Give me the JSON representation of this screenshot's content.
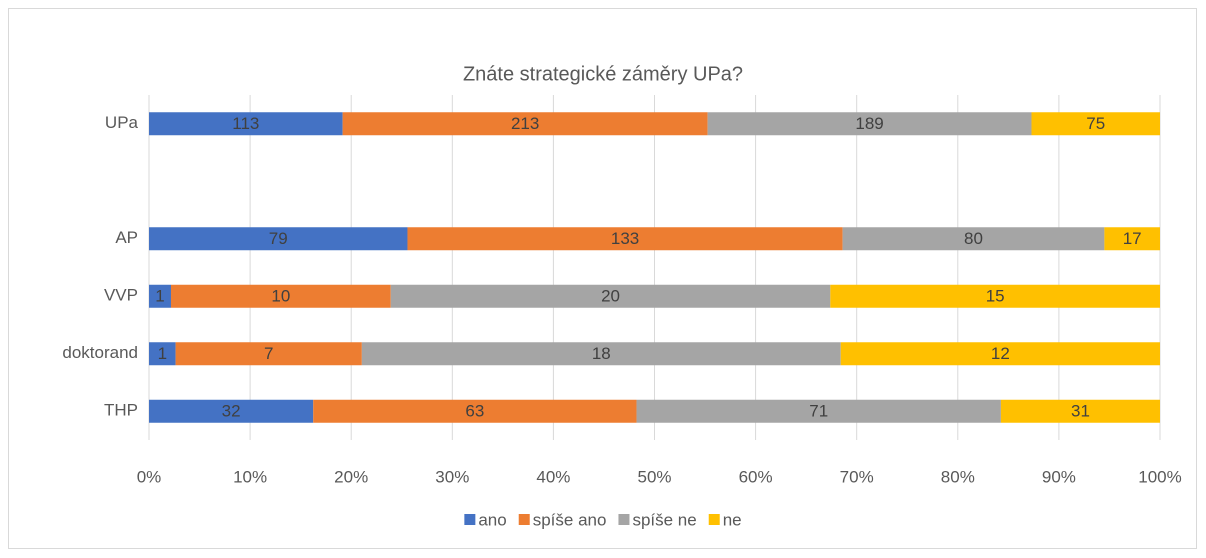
{
  "chart_data": {
    "type": "bar",
    "orientation": "horizontal",
    "stacking": "percent",
    "title": "Znáte strategické záměry UPa?",
    "categories": [
      "UPa",
      null,
      "AP",
      "VVP",
      "doktorand",
      "THP"
    ],
    "series": [
      {
        "name": "ano",
        "color": "#4472c4",
        "values": [
          113,
          null,
          79,
          1,
          1,
          32
        ]
      },
      {
        "name": "spíše ano",
        "color": "#ed7d31",
        "values": [
          213,
          null,
          133,
          10,
          7,
          63
        ]
      },
      {
        "name": "spíše ne",
        "color": "#a5a5a5",
        "values": [
          189,
          null,
          80,
          20,
          18,
          71
        ]
      },
      {
        "name": "ne",
        "color": "#ffc000",
        "values": [
          75,
          null,
          17,
          15,
          12,
          31
        ]
      }
    ],
    "xlim": [
      0,
      100
    ],
    "xticks": [
      {
        "value": 0,
        "label": "0%"
      },
      {
        "value": 10,
        "label": "10%"
      },
      {
        "value": 20,
        "label": "20%"
      },
      {
        "value": 30,
        "label": "30%"
      },
      {
        "value": 40,
        "label": "40%"
      },
      {
        "value": 50,
        "label": "50%"
      },
      {
        "value": 60,
        "label": "60%"
      },
      {
        "value": 70,
        "label": "70%"
      },
      {
        "value": 80,
        "label": "80%"
      },
      {
        "value": 90,
        "label": "90%"
      },
      {
        "value": 100,
        "label": "100%"
      }
    ],
    "grid": true,
    "legend": "bottom"
  }
}
